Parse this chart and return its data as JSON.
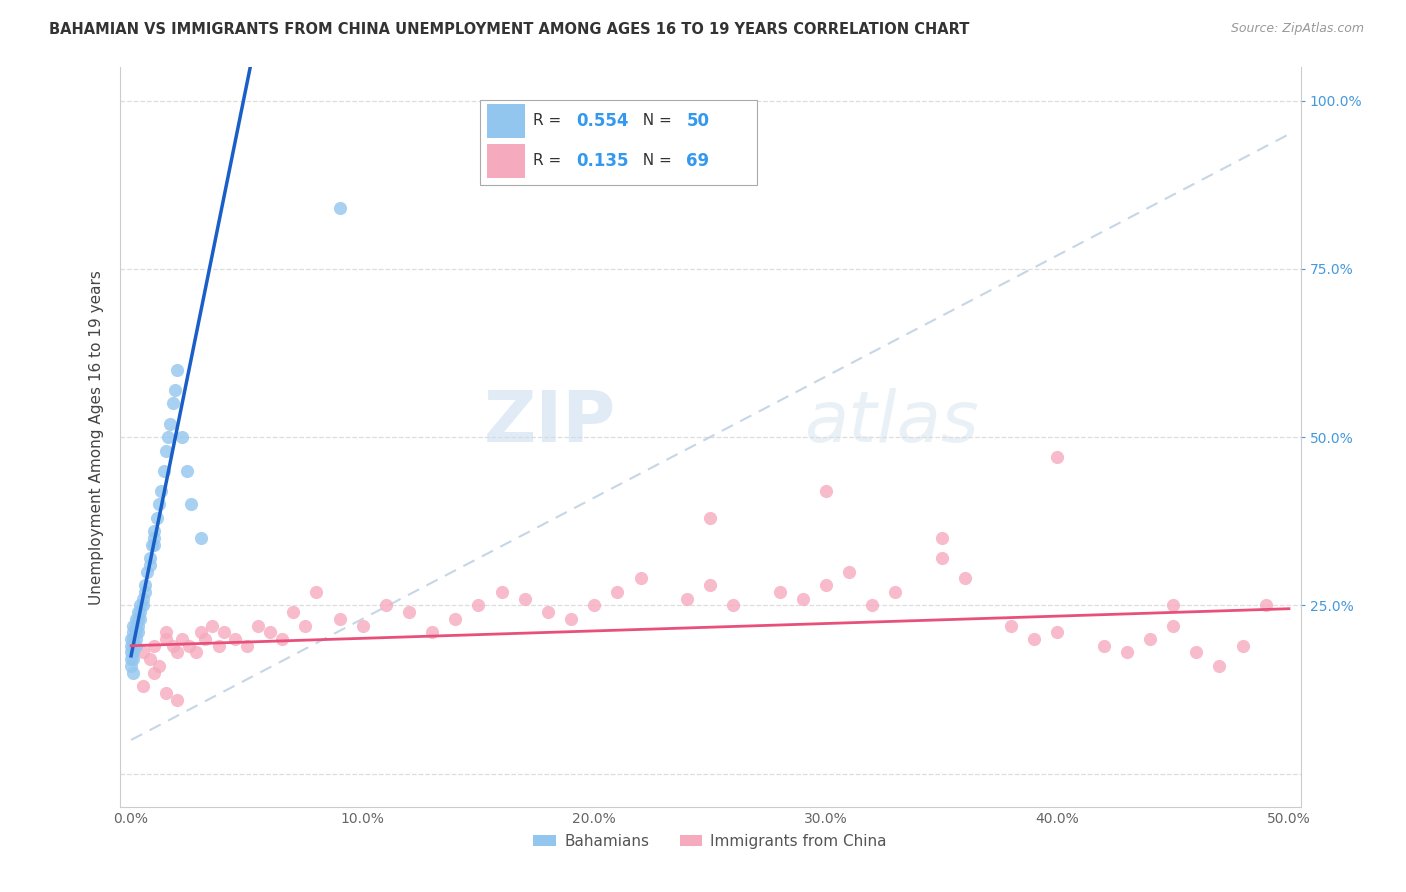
{
  "title": "BAHAMIAN VS IMMIGRANTS FROM CHINA UNEMPLOYMENT AMONG AGES 16 TO 19 YEARS CORRELATION CHART",
  "source": "Source: ZipAtlas.com",
  "ylabel": "Unemployment Among Ages 16 to 19 years",
  "x_tick_labels": [
    "0.0%",
    "",
    "10.0%",
    "",
    "20.0%",
    "",
    "30.0%",
    "",
    "40.0%",
    "",
    "50.0%"
  ],
  "x_tick_values": [
    0,
    0.05,
    0.1,
    0.15,
    0.2,
    0.25,
    0.3,
    0.35,
    0.4,
    0.45,
    0.5
  ],
  "y_tick_labels_right": [
    "100.0%",
    "75.0%",
    "50.0%",
    "25.0%"
  ],
  "y_tick_values_right": [
    1.0,
    0.75,
    0.5,
    0.25
  ],
  "xlim": [
    -0.005,
    0.505
  ],
  "ylim": [
    -0.05,
    1.05
  ],
  "bahamian_color": "#93C6EE",
  "china_color": "#F5AABE",
  "blue_line_color": "#1A5FC8",
  "pink_line_color": "#E8507A",
  "ref_line_color": "#B8CCE0",
  "watermark_zip": "ZIP",
  "watermark_atlas": "atlas",
  "legend_bahamian_label": "Bahamians",
  "legend_china_label": "Immigrants from China",
  "legend_R1": "0.554",
  "legend_N1": "50",
  "legend_R2": "0.135",
  "legend_N2": "69",
  "bah_x": [
    0.0,
    0.0,
    0.0,
    0.0,
    0.0,
    0.001,
    0.001,
    0.001,
    0.001,
    0.001,
    0.001,
    0.001,
    0.002,
    0.002,
    0.002,
    0.002,
    0.002,
    0.003,
    0.003,
    0.003,
    0.003,
    0.004,
    0.004,
    0.004,
    0.005,
    0.005,
    0.006,
    0.006,
    0.007,
    0.008,
    0.008,
    0.009,
    0.01,
    0.01,
    0.01,
    0.011,
    0.012,
    0.013,
    0.014,
    0.015,
    0.016,
    0.017,
    0.018,
    0.019,
    0.02,
    0.022,
    0.024,
    0.026,
    0.03,
    0.09
  ],
  "bah_y": [
    0.18,
    0.2,
    0.19,
    0.17,
    0.16,
    0.22,
    0.21,
    0.2,
    0.19,
    0.18,
    0.17,
    0.15,
    0.23,
    0.22,
    0.21,
    0.2,
    0.19,
    0.24,
    0.23,
    0.22,
    0.21,
    0.25,
    0.24,
    0.23,
    0.26,
    0.25,
    0.28,
    0.27,
    0.3,
    0.32,
    0.31,
    0.34,
    0.36,
    0.35,
    0.34,
    0.38,
    0.4,
    0.42,
    0.45,
    0.48,
    0.5,
    0.52,
    0.55,
    0.57,
    0.6,
    0.5,
    0.45,
    0.4,
    0.35,
    0.84
  ],
  "chi_x": [
    0.005,
    0.008,
    0.01,
    0.012,
    0.015,
    0.015,
    0.018,
    0.02,
    0.022,
    0.025,
    0.028,
    0.03,
    0.032,
    0.035,
    0.038,
    0.04,
    0.045,
    0.05,
    0.055,
    0.06,
    0.065,
    0.07,
    0.075,
    0.08,
    0.09,
    0.1,
    0.11,
    0.12,
    0.13,
    0.14,
    0.15,
    0.16,
    0.17,
    0.18,
    0.19,
    0.2,
    0.21,
    0.22,
    0.24,
    0.25,
    0.26,
    0.28,
    0.29,
    0.3,
    0.31,
    0.32,
    0.33,
    0.35,
    0.36,
    0.38,
    0.39,
    0.4,
    0.42,
    0.43,
    0.44,
    0.45,
    0.46,
    0.47,
    0.48,
    0.49,
    0.005,
    0.01,
    0.015,
    0.02,
    0.25,
    0.3,
    0.35,
    0.4,
    0.45
  ],
  "chi_y": [
    0.18,
    0.17,
    0.19,
    0.16,
    0.2,
    0.21,
    0.19,
    0.18,
    0.2,
    0.19,
    0.18,
    0.21,
    0.2,
    0.22,
    0.19,
    0.21,
    0.2,
    0.19,
    0.22,
    0.21,
    0.2,
    0.24,
    0.22,
    0.27,
    0.23,
    0.22,
    0.25,
    0.24,
    0.21,
    0.23,
    0.25,
    0.27,
    0.26,
    0.24,
    0.23,
    0.25,
    0.27,
    0.29,
    0.26,
    0.28,
    0.25,
    0.27,
    0.26,
    0.28,
    0.3,
    0.25,
    0.27,
    0.32,
    0.29,
    0.22,
    0.2,
    0.21,
    0.19,
    0.18,
    0.2,
    0.22,
    0.18,
    0.16,
    0.19,
    0.25,
    0.13,
    0.15,
    0.12,
    0.11,
    0.38,
    0.42,
    0.35,
    0.47,
    0.25
  ]
}
